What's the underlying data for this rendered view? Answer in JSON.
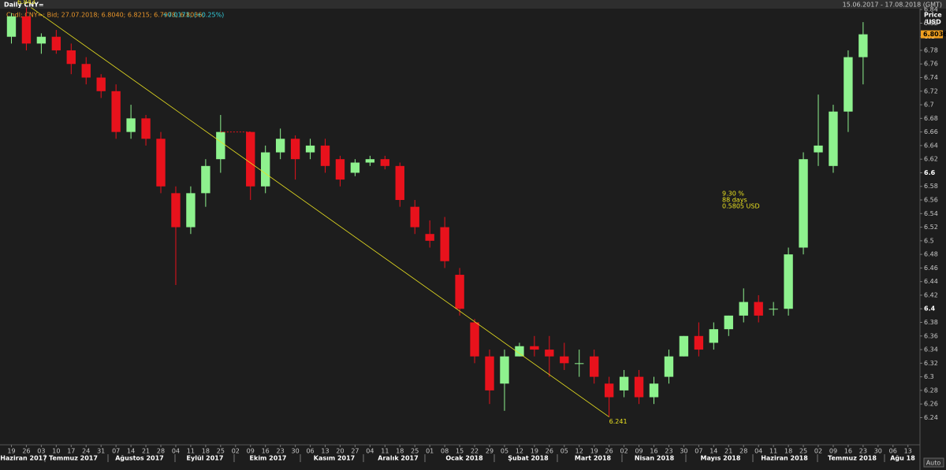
{
  "chart_data": {
    "type": "candlestick",
    "title": "Daily CNY=",
    "date_range": "15.06.2017 - 17.08.2018 (GMT)",
    "legend_text": "Cndl; CNY=; Bid; 27.07.2018; 6.8040; 6.8215; 6.7978; 6.8036;",
    "legend_change": "+0.0171; (+0.25%)",
    "y_axis_label": "Price",
    "y_axis_unit": "/USD",
    "auto_button": "Auto",
    "up_color": "#8ef28e",
    "down_color": "#e8121c",
    "ylim": [
      6.2,
      6.85
    ],
    "yticks": [
      6.24,
      6.26,
      6.28,
      6.3,
      6.32,
      6.34,
      6.36,
      6.38,
      6.4,
      6.42,
      6.44,
      6.46,
      6.48,
      6.5,
      6.52,
      6.54,
      6.56,
      6.58,
      6.6,
      6.62,
      6.64,
      6.66,
      6.68,
      6.7,
      6.72,
      6.74,
      6.76,
      6.78,
      6.8,
      6.82,
      6.84
    ],
    "categories": [
      "19",
      "26",
      "03",
      "10",
      "17",
      "24",
      "31",
      "07",
      "14",
      "21",
      "28",
      "04",
      "11",
      "18",
      "25",
      "02",
      "09",
      "16",
      "23",
      "30",
      "06",
      "13",
      "20",
      "27",
      "04",
      "11",
      "18",
      "25",
      "01",
      "08",
      "15",
      "22",
      "29",
      "05",
      "12",
      "19",
      "26",
      "05",
      "12",
      "19",
      "26",
      "02",
      "09",
      "16",
      "23",
      "30",
      "07",
      "14",
      "21",
      "28",
      "04",
      "11",
      "18",
      "25",
      "02",
      "09",
      "16",
      "23",
      "30",
      "06",
      "13"
    ],
    "months": [
      "Haziran 2017",
      "Temmuz 2017",
      "Ağustos 2017",
      "Eylül 2017",
      "Ekim 2017",
      "Kasım 2017",
      "Aralık 2017",
      "Ocak 2018",
      "Şubat 2018",
      "Mart 2018",
      "Nisan 2018",
      "Mayıs 2018",
      "Haziran 2018",
      "Temmuz 2018",
      "Ağu 18"
    ],
    "candles": [
      [
        6.8,
        6.835,
        6.79,
        6.83
      ],
      [
        6.83,
        6.843,
        6.78,
        6.79
      ],
      [
        6.79,
        6.805,
        6.775,
        6.8
      ],
      [
        6.8,
        6.81,
        6.775,
        6.78
      ],
      [
        6.78,
        6.79,
        6.745,
        6.76
      ],
      [
        6.76,
        6.77,
        6.73,
        6.74
      ],
      [
        6.74,
        6.745,
        6.71,
        6.72
      ],
      [
        6.72,
        6.73,
        6.65,
        6.66
      ],
      [
        6.66,
        6.7,
        6.65,
        6.68
      ],
      [
        6.68,
        6.685,
        6.64,
        6.65
      ],
      [
        6.65,
        6.66,
        6.57,
        6.58
      ],
      [
        6.57,
        6.58,
        6.435,
        6.52
      ],
      [
        6.52,
        6.58,
        6.51,
        6.57
      ],
      [
        6.57,
        6.62,
        6.55,
        6.61
      ],
      [
        6.62,
        6.685,
        6.6,
        6.66
      ],
      null,
      [
        6.66,
        6.66,
        6.56,
        6.58
      ],
      [
        6.58,
        6.64,
        6.57,
        6.63
      ],
      [
        6.63,
        6.665,
        6.62,
        6.65
      ],
      [
        6.65,
        6.655,
        6.59,
        6.62
      ],
      [
        6.63,
        6.65,
        6.62,
        6.64
      ],
      [
        6.64,
        6.65,
        6.6,
        6.61
      ],
      [
        6.62,
        6.625,
        6.58,
        6.59
      ],
      [
        6.6,
        6.62,
        6.595,
        6.615
      ],
      [
        6.615,
        6.625,
        6.61,
        6.62
      ],
      [
        6.62,
        6.625,
        6.605,
        6.61
      ],
      [
        6.61,
        6.615,
        6.55,
        6.56
      ],
      [
        6.55,
        6.56,
        6.51,
        6.52
      ],
      [
        6.51,
        6.53,
        6.49,
        6.5
      ],
      [
        6.52,
        6.535,
        6.46,
        6.47
      ],
      [
        6.45,
        6.46,
        6.39,
        6.4
      ],
      [
        6.38,
        6.385,
        6.32,
        6.33
      ],
      [
        6.33,
        6.34,
        6.26,
        6.28
      ],
      [
        6.29,
        6.34,
        6.25,
        6.33
      ],
      [
        6.33,
        6.35,
        6.33,
        6.345
      ],
      [
        6.345,
        6.36,
        6.33,
        6.34
      ],
      [
        6.34,
        6.36,
        6.3,
        6.33
      ],
      [
        6.33,
        6.35,
        6.31,
        6.32
      ],
      [
        6.32,
        6.34,
        6.3,
        6.32
      ],
      [
        6.33,
        6.34,
        6.29,
        6.3
      ],
      [
        6.29,
        6.3,
        6.241,
        6.27
      ],
      [
        6.28,
        6.31,
        6.27,
        6.3
      ],
      [
        6.3,
        6.31,
        6.26,
        6.27
      ],
      [
        6.27,
        6.3,
        6.26,
        6.29
      ],
      [
        6.3,
        6.34,
        6.29,
        6.33
      ],
      [
        6.33,
        6.36,
        6.33,
        6.36
      ],
      [
        6.36,
        6.38,
        6.33,
        6.34
      ],
      [
        6.35,
        6.38,
        6.34,
        6.37
      ],
      [
        6.37,
        6.39,
        6.36,
        6.39
      ],
      [
        6.39,
        6.43,
        6.38,
        6.41
      ],
      [
        6.41,
        6.42,
        6.38,
        6.39
      ],
      [
        6.4,
        6.41,
        6.39,
        6.4
      ],
      [
        6.4,
        6.49,
        6.39,
        6.48
      ],
      [
        6.49,
        6.63,
        6.48,
        6.62
      ],
      [
        6.63,
        6.715,
        6.61,
        6.64
      ],
      [
        6.61,
        6.7,
        6.6,
        6.69
      ],
      [
        6.69,
        6.78,
        6.66,
        6.77
      ],
      [
        6.77,
        6.8215,
        6.73,
        6.8036
      ],
      null,
      null,
      null
    ],
    "trend_percent": "9.30 %",
    "trend_days": "88 days",
    "trend_change": "0.5805 USD",
    "trend_color": "#e8e020"
  }
}
